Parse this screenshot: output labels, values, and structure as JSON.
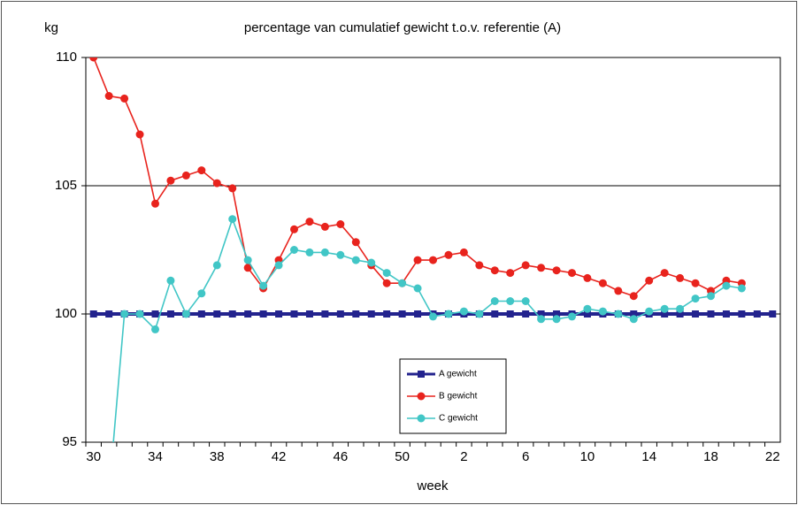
{
  "chart_data": {
    "type": "line",
    "title": "percentage van cumulatief  gewicht t.o.v. referentie (A)",
    "y_label": "kg",
    "x_label": "week",
    "categories": [
      30,
      null,
      null,
      null,
      34,
      null,
      null,
      null,
      38,
      null,
      null,
      null,
      42,
      null,
      null,
      null,
      46,
      null,
      null,
      null,
      50,
      null,
      null,
      null,
      2,
      null,
      null,
      null,
      6,
      null,
      null,
      null,
      10,
      null,
      null,
      null,
      14,
      null,
      null,
      null,
      18,
      null,
      null,
      null,
      22
    ],
    "ylim": [
      95,
      110
    ],
    "yticks": [
      95,
      100,
      105,
      110
    ],
    "grid": true,
    "legend": "center",
    "series": [
      {
        "name": "A gewicht",
        "color": "#23238e",
        "marker": "square",
        "values": [
          100,
          100,
          100,
          100,
          100,
          100,
          100,
          100,
          100,
          100,
          100,
          100,
          100,
          100,
          100,
          100,
          100,
          100,
          100,
          100,
          100,
          100,
          100,
          100,
          100,
          100,
          100,
          100,
          100,
          100,
          100,
          100,
          100,
          100,
          100,
          100,
          100,
          100,
          100,
          100,
          100,
          100,
          100,
          100,
          100
        ]
      },
      {
        "name": "B gewicht",
        "color": "#e8231d",
        "marker": "circle",
        "values": [
          110,
          108.5,
          108.4,
          107.0,
          104.3,
          105.2,
          105.4,
          105.6,
          105.1,
          104.9,
          101.8,
          101.0,
          102.1,
          103.3,
          103.6,
          103.4,
          103.5,
          102.8,
          101.9,
          101.2,
          101.2,
          102.1,
          102.1,
          102.3,
          102.4,
          101.9,
          101.7,
          101.6,
          101.9,
          101.8,
          101.7,
          101.6,
          101.4,
          101.2,
          100.9,
          100.7,
          101.3,
          101.6,
          101.4,
          101.2,
          100.9,
          101.3,
          101.2,
          null,
          null
        ]
      },
      {
        "name": "C gewicht",
        "color": "#41c6c6",
        "marker": "circle",
        "values": [
          null,
          93,
          100.0,
          100.0,
          99.4,
          101.3,
          100.0,
          100.8,
          101.9,
          103.7,
          102.1,
          101.1,
          101.9,
          102.5,
          102.4,
          102.4,
          102.3,
          102.1,
          102.0,
          101.6,
          101.2,
          101.0,
          99.9,
          100.0,
          100.1,
          100.0,
          100.5,
          100.5,
          100.5,
          99.8,
          99.8,
          99.9,
          100.2,
          100.1,
          100.0,
          99.8,
          100.1,
          100.2,
          100.2,
          100.6,
          100.7,
          101.1,
          101.0,
          null,
          null
        ]
      }
    ]
  }
}
